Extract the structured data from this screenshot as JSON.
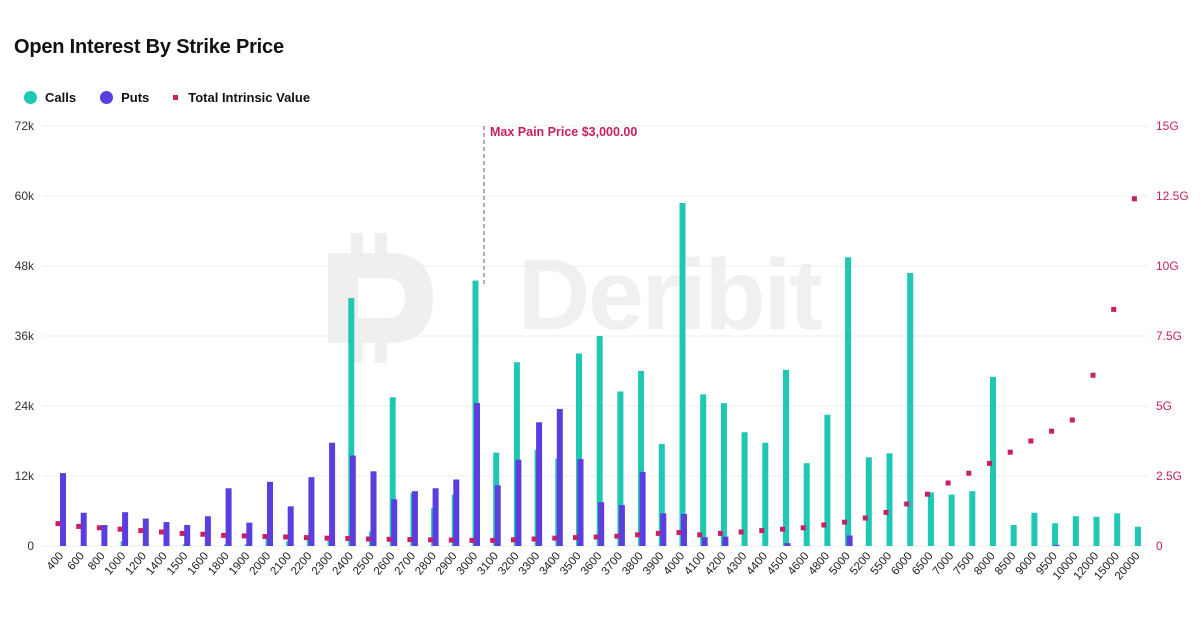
{
  "title": "Open Interest By Strike Price",
  "legend": {
    "calls": "Calls",
    "puts": "Puts",
    "intrinsic": "Total Intrinsic Value"
  },
  "colors": {
    "calls": "#1ec8b4",
    "puts": "#5b3ee0",
    "intrinsic": "#c81e64",
    "grid": "#ececec"
  },
  "watermark": "Deribit",
  "chart_data": {
    "type": "bar",
    "title": "Open Interest By Strike Price",
    "annotation": "Max Pain Price $3,000.00",
    "max_pain_strike": "3000",
    "ylim": [
      0,
      72000
    ],
    "y2lim": [
      0,
      15
    ],
    "y_ticks": [
      "72k",
      "60k",
      "48k",
      "36k",
      "24k",
      "12k",
      "0"
    ],
    "y2_ticks": [
      "15G",
      "12.5G",
      "10G",
      "7.5G",
      "5G",
      "2.5G",
      "0"
    ],
    "categories": [
      "400",
      "600",
      "800",
      "1000",
      "1200",
      "1400",
      "1500",
      "1600",
      "1800",
      "1900",
      "2000",
      "2100",
      "2200",
      "2300",
      "2400",
      "2500",
      "2600",
      "2700",
      "2800",
      "2900",
      "3000",
      "3100",
      "3200",
      "3300",
      "3400",
      "3500",
      "3600",
      "3700",
      "3800",
      "3900",
      "4000",
      "4100",
      "4200",
      "4300",
      "4400",
      "4500",
      "4600",
      "4800",
      "5000",
      "5200",
      "5500",
      "6000",
      "6500",
      "7000",
      "7500",
      "8000",
      "8500",
      "9000",
      "9500",
      "10000",
      "12000",
      "15000",
      "20000"
    ],
    "series": [
      {
        "name": "Calls",
        "axis": "left",
        "type": "bar",
        "values": [
          0,
          0,
          0,
          800,
          0,
          0,
          300,
          0,
          300,
          300,
          1900,
          800,
          1800,
          1700,
          42500,
          2500,
          25500,
          9100,
          6500,
          8800,
          45500,
          16000,
          31500,
          16500,
          15000,
          33000,
          36000,
          26500,
          30000,
          17500,
          58800,
          26000,
          24500,
          19500,
          17700,
          30200,
          14200,
          22500,
          49500,
          15200,
          15900,
          46800,
          9200,
          8800,
          9400,
          29000,
          3600,
          5700,
          3900,
          5100,
          5000,
          5600,
          3300
        ]
      },
      {
        "name": "Puts",
        "axis": "left",
        "type": "bar",
        "values": [
          12500,
          5700,
          3600,
          5800,
          4700,
          4100,
          3600,
          5100,
          9900,
          4000,
          11000,
          6800,
          11800,
          17700,
          15500,
          12800,
          8000,
          9400,
          9900,
          11400,
          24500,
          10400,
          14800,
          21200,
          23500,
          14900,
          7500,
          7000,
          12700,
          5600,
          5500,
          1500,
          1600,
          0,
          0,
          500,
          0,
          0,
          1800,
          0,
          0,
          0,
          0,
          0,
          0,
          0,
          0,
          0,
          200,
          0,
          0,
          0,
          0
        ]
      },
      {
        "name": "Total Intrinsic Value",
        "axis": "right",
        "type": "scatter",
        "unit": "G",
        "values": [
          0.8,
          0.7,
          0.65,
          0.6,
          0.55,
          0.5,
          0.45,
          0.42,
          0.38,
          0.36,
          0.34,
          0.32,
          0.3,
          0.28,
          0.27,
          0.25,
          0.24,
          0.23,
          0.22,
          0.21,
          0.2,
          0.2,
          0.22,
          0.25,
          0.28,
          0.3,
          0.32,
          0.35,
          0.4,
          0.45,
          0.48,
          0.4,
          0.45,
          0.5,
          0.55,
          0.6,
          0.65,
          0.75,
          0.85,
          1.0,
          1.2,
          1.5,
          1.85,
          2.25,
          2.6,
          2.95,
          3.35,
          3.75,
          4.1,
          4.5,
          6.1,
          8.45,
          12.4
        ]
      }
    ]
  }
}
